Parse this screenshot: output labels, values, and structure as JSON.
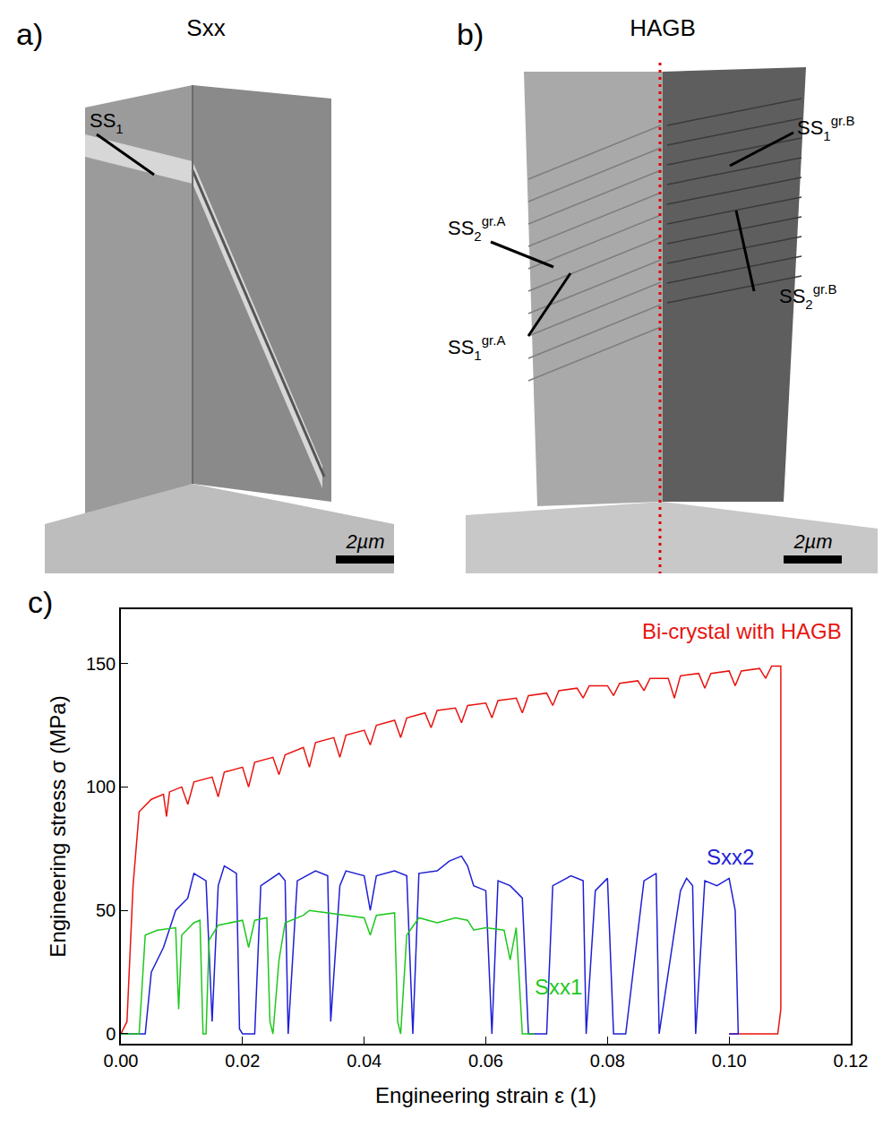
{
  "figure": {
    "panels": [
      {
        "letter": "a)",
        "title": "Sxx",
        "labels": [
          {
            "base": "SS",
            "sub": "1"
          }
        ],
        "scale_bar": "2µm"
      },
      {
        "letter": "b)",
        "title": "HAGB",
        "labels": [
          {
            "base": "SS",
            "sub": "1",
            "sup": "gr.B"
          },
          {
            "base": "SS",
            "sub": "2",
            "sup": "gr.A"
          },
          {
            "base": "SS",
            "sub": "1",
            "sup": "gr.A"
          },
          {
            "base": "SS",
            "sub": "2",
            "sup": "gr.B"
          }
        ],
        "scale_bar": "2µm"
      }
    ]
  },
  "chart_data": {
    "type": "line",
    "panel_letter": "c)",
    "x_label": "Engineering strain ε (1)",
    "y_label": "Engineering stress σ (MPa)",
    "xlim": [
      0,
      0.12
    ],
    "ylim": [
      -4,
      172
    ],
    "xticks": [
      {
        "value": 0,
        "label": "0.00"
      },
      {
        "value": 0.02,
        "label": "0.02"
      },
      {
        "value": 0.04,
        "label": "0.04"
      },
      {
        "value": 0.06,
        "label": "0.06"
      },
      {
        "value": 0.08,
        "label": "0.08"
      },
      {
        "value": 0.1,
        "label": "0.10"
      },
      {
        "value": 0.12,
        "label": "0.12"
      }
    ],
    "yticks": [
      0,
      50,
      100,
      150
    ],
    "grid": false,
    "series": [
      {
        "name": "Bi-crystal with HAGB",
        "color": "#e8140f",
        "x": [
          0,
          0.001,
          0.002,
          0.003,
          0.005,
          0.007,
          0.0075,
          0.008,
          0.01,
          0.011,
          0.012,
          0.015,
          0.016,
          0.017,
          0.02,
          0.021,
          0.022,
          0.025,
          0.026,
          0.027,
          0.03,
          0.031,
          0.032,
          0.035,
          0.036,
          0.037,
          0.04,
          0.041,
          0.042,
          0.045,
          0.046,
          0.047,
          0.05,
          0.051,
          0.052,
          0.055,
          0.056,
          0.057,
          0.06,
          0.061,
          0.062,
          0.065,
          0.066,
          0.067,
          0.07,
          0.071,
          0.072,
          0.075,
          0.076,
          0.077,
          0.08,
          0.081,
          0.082,
          0.085,
          0.086,
          0.087,
          0.09,
          0.091,
          0.092,
          0.095,
          0.096,
          0.097,
          0.1,
          0.101,
          0.102,
          0.105,
          0.106,
          0.107,
          0.1085,
          0.1085,
          0.108,
          0.1
        ],
        "values": [
          0,
          5,
          60,
          90,
          95,
          97,
          88,
          98,
          100,
          93,
          102,
          104,
          96,
          106,
          108,
          100,
          110,
          112,
          105,
          113,
          116,
          108,
          118,
          120,
          112,
          121,
          123,
          117,
          125,
          127,
          120,
          128,
          130,
          124,
          131,
          132,
          126,
          133,
          134,
          128,
          135,
          136,
          130,
          137,
          138,
          133,
          139,
          140,
          136,
          141,
          141,
          137,
          142,
          143,
          139,
          144,
          144,
          136,
          145,
          146,
          140,
          146,
          147,
          141,
          147,
          148,
          144,
          149,
          149,
          10,
          0,
          0
        ]
      },
      {
        "name": "Sxx2",
        "color": "#1f1fd6",
        "x": [
          0,
          0.004,
          0.005,
          0.007,
          0.009,
          0.011,
          0.012,
          0.014,
          0.015,
          0.016,
          0.017,
          0.019,
          0.0195,
          0.02,
          0.022,
          0.023,
          0.026,
          0.027,
          0.0275,
          0.029,
          0.032,
          0.034,
          0.0345,
          0.036,
          0.037,
          0.04,
          0.041,
          0.042,
          0.045,
          0.047,
          0.048,
          0.049,
          0.052,
          0.054,
          0.056,
          0.057,
          0.058,
          0.06,
          0.061,
          0.062,
          0.064,
          0.066,
          0.067,
          0.07,
          0.071,
          0.074,
          0.076,
          0.0765,
          0.078,
          0.08,
          0.081,
          0.083,
          0.086,
          0.088,
          0.0885,
          0.092,
          0.093,
          0.094,
          0.0945,
          0.096,
          0.098,
          0.1,
          0.101,
          0.1015,
          0.1
        ],
        "values": [
          0,
          0,
          25,
          35,
          50,
          55,
          65,
          62,
          5,
          60,
          68,
          65,
          2,
          0,
          0,
          60,
          65,
          62,
          0,
          62,
          66,
          64,
          5,
          60,
          66,
          64,
          50,
          64,
          66,
          64,
          0,
          65,
          66,
          70,
          72,
          68,
          60,
          58,
          0,
          62,
          60,
          55,
          0,
          0,
          60,
          64,
          62,
          0,
          58,
          63,
          0,
          0,
          62,
          65,
          0,
          58,
          63,
          60,
          0,
          62,
          60,
          63,
          50,
          0,
          0
        ]
      },
      {
        "name": "Sxx1",
        "color": "#1ec81e",
        "x": [
          0,
          0.003,
          0.004,
          0.006,
          0.009,
          0.0095,
          0.01,
          0.012,
          0.013,
          0.0135,
          0.014,
          0.0145,
          0.016,
          0.02,
          0.021,
          0.022,
          0.024,
          0.0245,
          0.025,
          0.026,
          0.027,
          0.03,
          0.031,
          0.04,
          0.041,
          0.042,
          0.045,
          0.0455,
          0.046,
          0.047,
          0.049,
          0.052,
          0.055,
          0.057,
          0.058,
          0.06,
          0.063,
          0.064,
          0.065,
          0.066,
          0.068
        ],
        "values": [
          0,
          0,
          40,
          42,
          43,
          10,
          40,
          45,
          46,
          0,
          0,
          38,
          44,
          46,
          35,
          46,
          47,
          5,
          0,
          30,
          45,
          48,
          50,
          47,
          40,
          48,
          49,
          5,
          0,
          40,
          47,
          45,
          47,
          46,
          42,
          43,
          42,
          30,
          43,
          0,
          0
        ]
      }
    ]
  }
}
